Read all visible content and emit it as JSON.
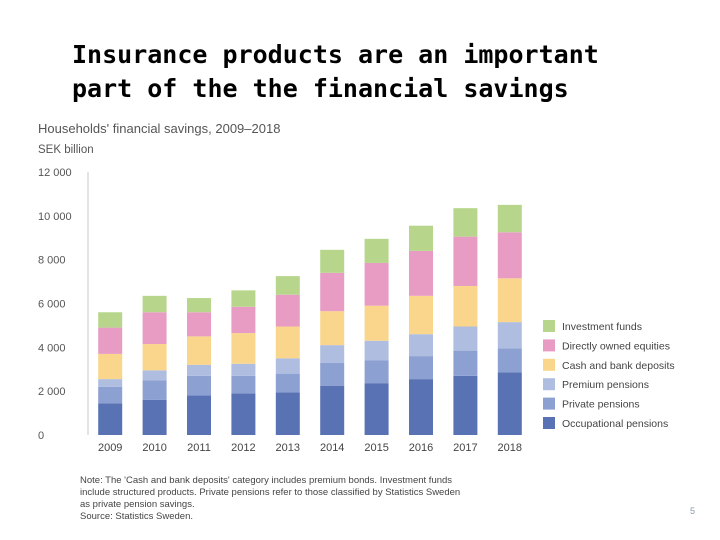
{
  "slide": {
    "title_line1": "Insurance products are an important",
    "title_line2": "part of the the financial savings",
    "page_number": "5"
  },
  "note": {
    "lines": [
      "Note: The 'Cash and bank deposits' category includes premium bonds. Investment funds",
      "include structured products. Private pensions refer to those classified by Statistics Sweden",
      "as private pension savings.",
      "Source: Statistics Sweden."
    ]
  },
  "chart_data": {
    "type": "bar",
    "stacked": true,
    "title": "Households' financial savings, 2009–2018",
    "ylabel": "SEK billion",
    "ylim": [
      0,
      12000
    ],
    "yticks": [
      "0",
      "2 000",
      "4 000",
      "6 000",
      "8 000",
      "10 000",
      "12 000"
    ],
    "grid": false,
    "legend_position": "right",
    "categories": [
      "2009",
      "2010",
      "2011",
      "2012",
      "2013",
      "2014",
      "2015",
      "2016",
      "2017",
      "2018"
    ],
    "series": [
      {
        "name": "Occupational pensions",
        "color": "#5872b4",
        "values": [
          1450,
          1600,
          1800,
          1900,
          1950,
          2250,
          2350,
          2550,
          2700,
          2850
        ]
      },
      {
        "name": "Private pensions",
        "color": "#8da0d2",
        "values": [
          750,
          900,
          900,
          800,
          850,
          1050,
          1050,
          1050,
          1150,
          1100
        ]
      },
      {
        "name": "Premium pensions",
        "color": "#aebde0",
        "values": [
          350,
          450,
          500,
          550,
          700,
          800,
          900,
          1000,
          1100,
          1200
        ]
      },
      {
        "name": "Cash and bank deposits",
        "color": "#f9d68c",
        "values": [
          1150,
          1200,
          1300,
          1400,
          1450,
          1550,
          1600,
          1750,
          1850,
          2000
        ]
      },
      {
        "name": "Directly owned equities",
        "color": "#e89cc4",
        "values": [
          1200,
          1450,
          1100,
          1200,
          1450,
          1750,
          1950,
          2050,
          2250,
          2100
        ]
      },
      {
        "name": "Investment funds",
        "color": "#b7d68c",
        "values": [
          700,
          750,
          650,
          750,
          850,
          1050,
          1100,
          1150,
          1300,
          1250
        ]
      }
    ]
  }
}
